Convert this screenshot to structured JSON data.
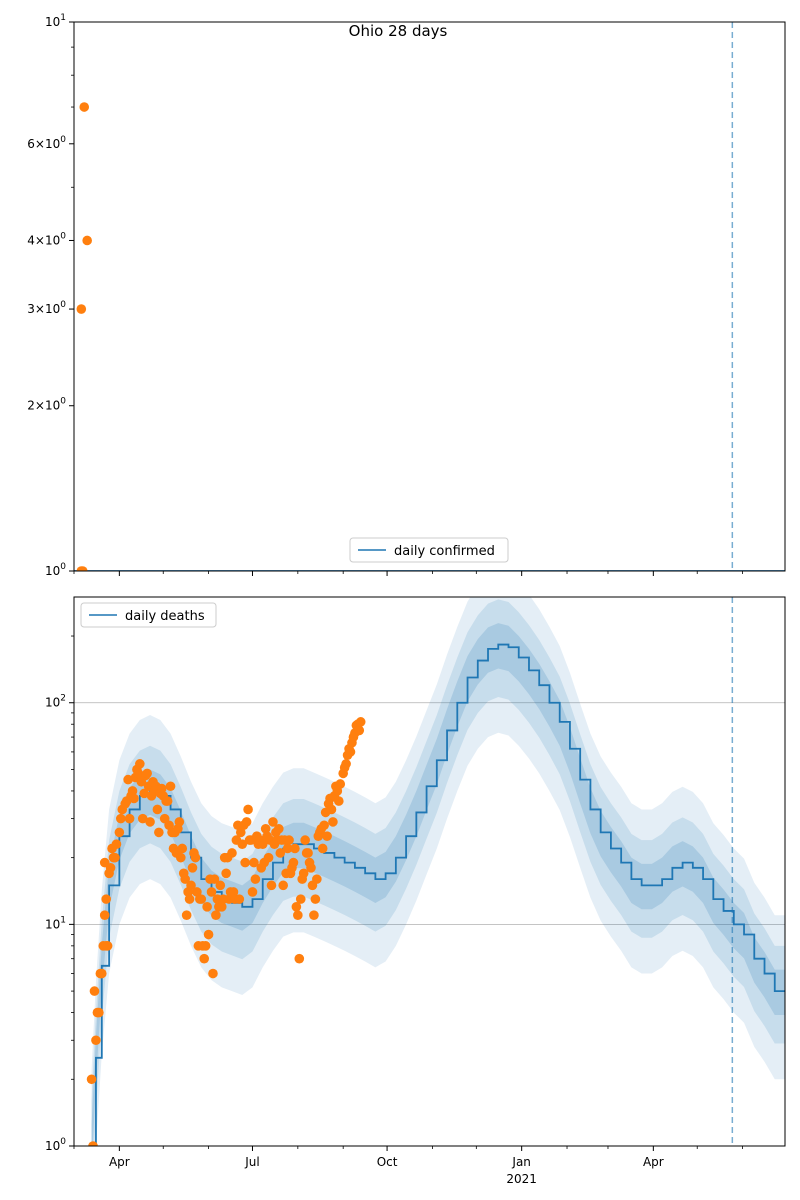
{
  "figure_title": "Ohio 28 days",
  "colors": {
    "model_line": "#1f77b4",
    "observed_points": "#ff7f0e",
    "band": "#1f77b4",
    "forecast_marker": "#1f77b4",
    "grid": "#b0b0b0"
  },
  "chart_data": [
    {
      "type": "scatter",
      "panel": "top",
      "title": "Ohio 28 days",
      "xlabel": "",
      "ylabel": "",
      "yscale": "log",
      "ylim": [
        1,
        10
      ],
      "yticks": [
        {
          "value": 1,
          "label": "10^0",
          "base": "10",
          "exp": "0"
        },
        {
          "value": 2,
          "label": "2×10^0",
          "base": "2×10",
          "exp": "0"
        },
        {
          "value": 3,
          "label": "3×10^0",
          "base": "3×10",
          "exp": "0"
        },
        {
          "value": 4,
          "label": "4×10^0",
          "base": "4×10",
          "exp": "0"
        },
        {
          "value": 6,
          "label": "6×10^0",
          "base": "6×10",
          "exp": "0"
        },
        {
          "value": 10,
          "label": "10^1",
          "base": "10",
          "exp": "1"
        }
      ],
      "xlim": [
        "2020-03-01",
        "2021-06-30"
      ],
      "grid": false,
      "legend": {
        "position": "bottom-center",
        "entries": [
          "daily confirmed"
        ]
      },
      "forecast_start": "2021-05-25",
      "series": [
        {
          "name": "daily confirmed",
          "kind": "line",
          "points": [
            [
              "2020-03-01",
              1
            ],
            [
              "2021-06-30",
              1
            ]
          ]
        },
        {
          "kind": "points",
          "points": [
            [
              "2020-03-06",
              1
            ],
            [
              "2020-03-07",
              1
            ],
            [
              "2020-03-06",
              3
            ],
            [
              "2020-03-08",
              7
            ],
            [
              "2020-03-10",
              4
            ]
          ]
        }
      ]
    },
    {
      "type": "line",
      "panel": "bottom",
      "title": "",
      "xlabel": "",
      "ylabel": "",
      "yscale": "log",
      "ylim": [
        1,
        300
      ],
      "yticks": [
        {
          "value": 1,
          "label": "10^0",
          "base": "10",
          "exp": "0"
        },
        {
          "value": 10,
          "label": "10^1",
          "base": "10",
          "exp": "1"
        },
        {
          "value": 100,
          "label": "10^2",
          "base": "10",
          "exp": "2"
        }
      ],
      "xlim": [
        "2020-03-01",
        "2021-06-30"
      ],
      "xticks": [
        {
          "date": "2020-04-01",
          "label": "Apr"
        },
        {
          "date": "2020-07-01",
          "label": "Jul"
        },
        {
          "date": "2020-10-01",
          "label": "Oct"
        },
        {
          "date": "2021-01-01",
          "label": "Jan",
          "sublabel": "2021"
        },
        {
          "date": "2021-04-01",
          "label": "Apr"
        }
      ],
      "grid": "horizontal",
      "legend": {
        "position": "top-left",
        "entries": [
          "daily deaths"
        ]
      },
      "forecast_start": "2021-05-25",
      "curve": [
        [
          "2020-03-13",
          1
        ],
        [
          "2020-03-16",
          2.5
        ],
        [
          "2020-03-20",
          6.5
        ],
        [
          "2020-03-25",
          15
        ],
        [
          "2020-04-01",
          25
        ],
        [
          "2020-04-08",
          33
        ],
        [
          "2020-04-15",
          38
        ],
        [
          "2020-04-22",
          40
        ],
        [
          "2020-04-29",
          38
        ],
        [
          "2020-05-06",
          33
        ],
        [
          "2020-05-13",
          26
        ],
        [
          "2020-05-20",
          20
        ],
        [
          "2020-05-27",
          16
        ],
        [
          "2020-06-03",
          14
        ],
        [
          "2020-06-10",
          13
        ],
        [
          "2020-06-17",
          12.5
        ],
        [
          "2020-06-24",
          12
        ],
        [
          "2020-07-01",
          13
        ],
        [
          "2020-07-08",
          16
        ],
        [
          "2020-07-15",
          19
        ],
        [
          "2020-07-22",
          22
        ],
        [
          "2020-07-29",
          23
        ],
        [
          "2020-08-05",
          23
        ],
        [
          "2020-08-12",
          22
        ],
        [
          "2020-08-19",
          21
        ],
        [
          "2020-08-26",
          20
        ],
        [
          "2020-09-02",
          19
        ],
        [
          "2020-09-09",
          18
        ],
        [
          "2020-09-16",
          17
        ],
        [
          "2020-09-23",
          16
        ],
        [
          "2020-09-30",
          17
        ],
        [
          "2020-10-07",
          20
        ],
        [
          "2020-10-14",
          25
        ],
        [
          "2020-10-21",
          32
        ],
        [
          "2020-10-28",
          42
        ],
        [
          "2020-11-04",
          55
        ],
        [
          "2020-11-11",
          75
        ],
        [
          "2020-11-18",
          100
        ],
        [
          "2020-11-25",
          130
        ],
        [
          "2020-12-02",
          155
        ],
        [
          "2020-12-09",
          175
        ],
        [
          "2020-12-16",
          183
        ],
        [
          "2020-12-23",
          178
        ],
        [
          "2020-12-30",
          160
        ],
        [
          "2021-01-06",
          140
        ],
        [
          "2021-01-13",
          120
        ],
        [
          "2021-01-20",
          100
        ],
        [
          "2021-01-27",
          82
        ],
        [
          "2021-02-03",
          62
        ],
        [
          "2021-02-10",
          45
        ],
        [
          "2021-02-17",
          33
        ],
        [
          "2021-02-24",
          26
        ],
        [
          "2021-03-03",
          22
        ],
        [
          "2021-03-10",
          19
        ],
        [
          "2021-03-17",
          16
        ],
        [
          "2021-03-24",
          15
        ],
        [
          "2021-03-31",
          15
        ],
        [
          "2021-04-07",
          16
        ],
        [
          "2021-04-14",
          18
        ],
        [
          "2021-04-21",
          19
        ],
        [
          "2021-04-28",
          18
        ],
        [
          "2021-05-05",
          16
        ],
        [
          "2021-05-12",
          13
        ],
        [
          "2021-05-19",
          11.5
        ],
        [
          "2021-05-26",
          10
        ],
        [
          "2021-06-02",
          9
        ],
        [
          "2021-06-09",
          7
        ],
        [
          "2021-06-16",
          6
        ],
        [
          "2021-06-23",
          5
        ],
        [
          "2021-06-30",
          5
        ]
      ],
      "bands": [
        {
          "level": "outer",
          "lower": 0.4,
          "upper": 2.2
        },
        {
          "level": "middle",
          "lower": 0.58,
          "upper": 1.6
        },
        {
          "level": "inner",
          "lower": 0.78,
          "upper": 1.25
        }
      ],
      "observed": [
        [
          "2020-03-14",
          1
        ],
        [
          "2020-03-13",
          2
        ],
        [
          "2020-03-16",
          3
        ],
        [
          "2020-03-15",
          5
        ],
        [
          "2020-03-17",
          4
        ],
        [
          "2020-03-18",
          4
        ],
        [
          "2020-03-19",
          6
        ],
        [
          "2020-03-20",
          6
        ],
        [
          "2020-03-21",
          8
        ],
        [
          "2020-03-22",
          11
        ],
        [
          "2020-03-23",
          8
        ],
        [
          "2020-03-24",
          8
        ],
        [
          "2020-03-23",
          13
        ],
        [
          "2020-03-22",
          19
        ],
        [
          "2020-03-25",
          17
        ],
        [
          "2020-03-26",
          18
        ],
        [
          "2020-03-27",
          22
        ],
        [
          "2020-03-28",
          20
        ],
        [
          "2020-03-29",
          20
        ],
        [
          "2020-03-30",
          23
        ],
        [
          "2020-04-01",
          26
        ],
        [
          "2020-04-02",
          30
        ],
        [
          "2020-04-03",
          33
        ],
        [
          "2020-04-05",
          35
        ],
        [
          "2020-04-06",
          36
        ],
        [
          "2020-04-07",
          45
        ],
        [
          "2020-04-08",
          30
        ],
        [
          "2020-04-09",
          38
        ],
        [
          "2020-04-10",
          40
        ],
        [
          "2020-04-11",
          37
        ],
        [
          "2020-04-12",
          46
        ],
        [
          "2020-04-13",
          50
        ],
        [
          "2020-04-14",
          48
        ],
        [
          "2020-04-15",
          53
        ],
        [
          "2020-04-16",
          44
        ],
        [
          "2020-04-17",
          30
        ],
        [
          "2020-04-18",
          39
        ],
        [
          "2020-04-19",
          47
        ],
        [
          "2020-04-20",
          48
        ],
        [
          "2020-04-21",
          42
        ],
        [
          "2020-04-22",
          29
        ],
        [
          "2020-04-23",
          38
        ],
        [
          "2020-04-24",
          44
        ],
        [
          "2020-04-25",
          40
        ],
        [
          "2020-04-26",
          42
        ],
        [
          "2020-04-27",
          33
        ],
        [
          "2020-04-28",
          26
        ],
        [
          "2020-04-29",
          39
        ],
        [
          "2020-04-30",
          41
        ],
        [
          "2020-05-01",
          38
        ],
        [
          "2020-05-02",
          30
        ],
        [
          "2020-05-03",
          36
        ],
        [
          "2020-05-04",
          36
        ],
        [
          "2020-05-05",
          28
        ],
        [
          "2020-05-06",
          42
        ],
        [
          "2020-05-07",
          26
        ],
        [
          "2020-05-08",
          22
        ],
        [
          "2020-05-09",
          26
        ],
        [
          "2020-05-10",
          21
        ],
        [
          "2020-05-11",
          27
        ],
        [
          "2020-05-12",
          29
        ],
        [
          "2020-05-13",
          20
        ],
        [
          "2020-05-14",
          22
        ],
        [
          "2020-05-15",
          17
        ],
        [
          "2020-05-16",
          16
        ],
        [
          "2020-05-17",
          11
        ],
        [
          "2020-05-18",
          14
        ],
        [
          "2020-05-19",
          13
        ],
        [
          "2020-05-20",
          15
        ],
        [
          "2020-05-21",
          18
        ],
        [
          "2020-05-22",
          21
        ],
        [
          "2020-05-23",
          20
        ],
        [
          "2020-05-24",
          14
        ],
        [
          "2020-05-25",
          8
        ],
        [
          "2020-05-26",
          13
        ],
        [
          "2020-05-27",
          13
        ],
        [
          "2020-05-28",
          8
        ],
        [
          "2020-05-29",
          7
        ],
        [
          "2020-05-30",
          8
        ],
        [
          "2020-05-31",
          12
        ],
        [
          "2020-06-01",
          9
        ],
        [
          "2020-06-02",
          16
        ],
        [
          "2020-06-03",
          14
        ],
        [
          "2020-06-04",
          6
        ],
        [
          "2020-06-05",
          16
        ],
        [
          "2020-06-06",
          11
        ],
        [
          "2020-06-07",
          13
        ],
        [
          "2020-06-08",
          12
        ],
        [
          "2020-06-09",
          15
        ],
        [
          "2020-06-10",
          12
        ],
        [
          "2020-06-11",
          13
        ],
        [
          "2020-06-12",
          20
        ],
        [
          "2020-06-13",
          17
        ],
        [
          "2020-06-14",
          20
        ],
        [
          "2020-06-15",
          13
        ],
        [
          "2020-06-16",
          14
        ],
        [
          "2020-06-17",
          21
        ],
        [
          "2020-06-18",
          14
        ],
        [
          "2020-06-19",
          13
        ],
        [
          "2020-06-20",
          24
        ],
        [
          "2020-06-21",
          28
        ],
        [
          "2020-06-22",
          13
        ],
        [
          "2020-06-23",
          26
        ],
        [
          "2020-06-24",
          23
        ],
        [
          "2020-06-25",
          28
        ],
        [
          "2020-06-26",
          19
        ],
        [
          "2020-06-27",
          29
        ],
        [
          "2020-06-28",
          33
        ],
        [
          "2020-06-29",
          24
        ],
        [
          "2020-06-30",
          24
        ],
        [
          "2020-07-01",
          14
        ],
        [
          "2020-07-02",
          19
        ],
        [
          "2020-07-03",
          16
        ],
        [
          "2020-07-04",
          25
        ],
        [
          "2020-07-05",
          23
        ],
        [
          "2020-07-06",
          24
        ],
        [
          "2020-07-07",
          18
        ],
        [
          "2020-07-08",
          23
        ],
        [
          "2020-07-09",
          19
        ],
        [
          "2020-07-10",
          27
        ],
        [
          "2020-07-11",
          25
        ],
        [
          "2020-07-12",
          20
        ],
        [
          "2020-07-13",
          24
        ],
        [
          "2020-07-14",
          15
        ],
        [
          "2020-07-15",
          29
        ],
        [
          "2020-07-16",
          23
        ],
        [
          "2020-07-17",
          26
        ],
        [
          "2020-07-18",
          24
        ],
        [
          "2020-07-19",
          27
        ],
        [
          "2020-07-20",
          21
        ],
        [
          "2020-07-21",
          24
        ],
        [
          "2020-07-22",
          15
        ],
        [
          "2020-07-23",
          24
        ],
        [
          "2020-07-24",
          17
        ],
        [
          "2020-07-25",
          22
        ],
        [
          "2020-07-26",
          24
        ],
        [
          "2020-07-27",
          17
        ],
        [
          "2020-07-28",
          18
        ],
        [
          "2020-07-29",
          19
        ],
        [
          "2020-07-30",
          22
        ],
        [
          "2020-07-31",
          12
        ],
        [
          "2020-08-01",
          11
        ],
        [
          "2020-08-02",
          7
        ],
        [
          "2020-08-03",
          13
        ],
        [
          "2020-08-04",
          16
        ],
        [
          "2020-08-05",
          17
        ],
        [
          "2020-08-06",
          24
        ],
        [
          "2020-08-07",
          21
        ],
        [
          "2020-08-08",
          21
        ],
        [
          "2020-08-09",
          19
        ],
        [
          "2020-08-10",
          18
        ],
        [
          "2020-08-11",
          15
        ],
        [
          "2020-08-12",
          11
        ],
        [
          "2020-08-13",
          13
        ],
        [
          "2020-08-14",
          16
        ],
        [
          "2020-08-15",
          25
        ],
        [
          "2020-08-16",
          26
        ],
        [
          "2020-08-17",
          27
        ],
        [
          "2020-08-18",
          22
        ],
        [
          "2020-08-19",
          28
        ],
        [
          "2020-08-20",
          32
        ],
        [
          "2020-08-21",
          25
        ],
        [
          "2020-08-22",
          35
        ],
        [
          "2020-08-23",
          37
        ],
        [
          "2020-08-24",
          33
        ],
        [
          "2020-08-25",
          29
        ],
        [
          "2020-08-26",
          38
        ],
        [
          "2020-08-27",
          42
        ],
        [
          "2020-08-28",
          40
        ],
        [
          "2020-08-29",
          36
        ],
        [
          "2020-08-30",
          43
        ],
        [
          "2020-09-01",
          48
        ],
        [
          "2020-09-02",
          51
        ],
        [
          "2020-09-03",
          53
        ],
        [
          "2020-09-04",
          58
        ],
        [
          "2020-09-05",
          62
        ],
        [
          "2020-09-06",
          60
        ],
        [
          "2020-09-07",
          66
        ],
        [
          "2020-09-08",
          70
        ],
        [
          "2020-09-09",
          73
        ],
        [
          "2020-09-10",
          79
        ],
        [
          "2020-09-11",
          80
        ],
        [
          "2020-09-12",
          75
        ],
        [
          "2020-09-13",
          82
        ]
      ]
    }
  ]
}
